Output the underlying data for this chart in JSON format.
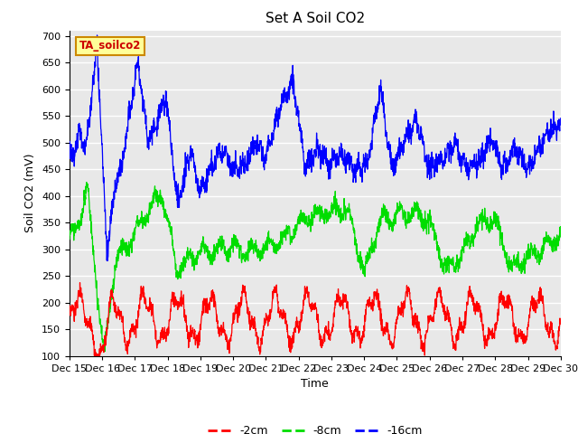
{
  "title": "Set A Soil CO2",
  "ylabel": "Soil CO2 (mV)",
  "xlabel": "Time",
  "annotation": "TA_soilco2",
  "ylim": [
    100,
    710
  ],
  "yticks": [
    100,
    150,
    200,
    250,
    300,
    350,
    400,
    450,
    500,
    550,
    600,
    650,
    700
  ],
  "xtick_labels": [
    "Dec 15",
    "Dec 16",
    "Dec 17",
    "Dec 18",
    "Dec 19",
    "Dec 20",
    "Dec 21",
    "Dec 22",
    "Dec 23",
    "Dec 24",
    "Dec 25",
    "Dec 26",
    "Dec 27",
    "Dec 28",
    "Dec 29",
    "Dec 30"
  ],
  "color_2cm": "#ff0000",
  "color_8cm": "#00dd00",
  "color_16cm": "#0000ff",
  "legend_labels": [
    "-2cm",
    "-8cm",
    "-16cm"
  ],
  "bg_color": "#e8e8e8",
  "annotation_bg": "#ffff99",
  "annotation_border": "#cc8800",
  "annotation_text_color": "#cc0000",
  "grid_color": "#ffffff",
  "title_fontsize": 11,
  "label_fontsize": 9,
  "tick_fontsize": 8
}
